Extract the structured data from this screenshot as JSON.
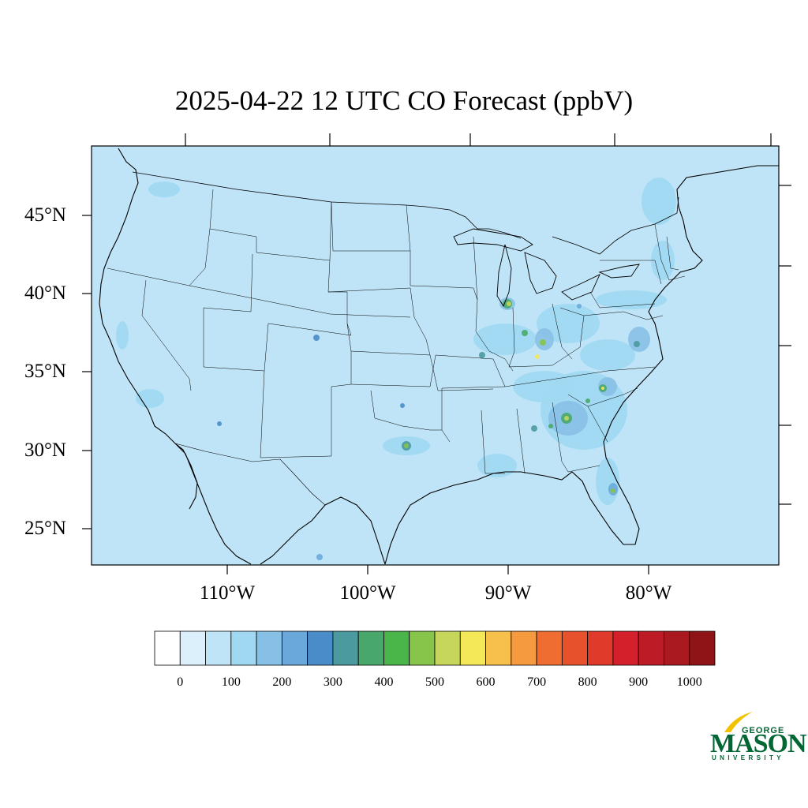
{
  "title": "2025-04-22 12 UTC CO Forecast (ppbV)",
  "map": {
    "region": "Contiguous United States",
    "background_color": "#c0e4f7",
    "lat_labels": [
      "45°N",
      "40°N",
      "35°N",
      "30°N",
      "25°N"
    ],
    "lon_labels": [
      "110°W",
      "100°W",
      "90°W",
      "80°W"
    ]
  },
  "colorbar": {
    "colors": [
      "#ffffff",
      "#dbf0fb",
      "#c0e4f7",
      "#a0d8f2",
      "#87c0e6",
      "#6aa8db",
      "#4a8bc9",
      "#4a9a9f",
      "#48a86c",
      "#4ab64a",
      "#86c44a",
      "#c6d65a",
      "#f5e858",
      "#f7c04a",
      "#f59a3e",
      "#f06d31",
      "#e7522d",
      "#e03a2a",
      "#d4202a",
      "#bd1b26",
      "#a9191f",
      "#8f1418"
    ],
    "tick_labels": [
      "0",
      "100",
      "200",
      "300",
      "400",
      "500",
      "600",
      "700",
      "800",
      "900",
      "1000"
    ]
  },
  "logo": {
    "line1": "GEORGE",
    "line2": "MASON",
    "line3": "UNIVERSITY"
  }
}
